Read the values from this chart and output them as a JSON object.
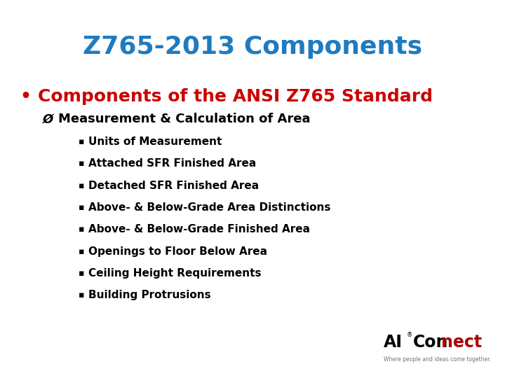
{
  "title": "Z765-2013 Components",
  "title_color": "#1F7BBF",
  "bullet1_bullet": "•",
  "bullet1": "Components of the ANSI Z765 Standard",
  "bullet1_color": "#CC0000",
  "sub_bullet_arrow": "Ø",
  "sub_bullet": "Measurement & Calculation of Area",
  "sub_bullet_color": "#000000",
  "items": [
    "Units of Measurement",
    "Attached SFR Finished Area",
    "Detached SFR Finished Area",
    "Above- & Below-Grade Area Distinctions",
    "Above- & Below-Grade Finished Area",
    "Openings to Floor Below Area",
    "Ceiling Height Requirements",
    "Building Protrusions"
  ],
  "item_color": "#000000",
  "bg_color": "#FFFFFF",
  "logo_ai": "AI",
  "logo_reg": "®",
  "logo_con": "Con",
  "logo_nect": "nect",
  "logo_ai_color": "#000000",
  "logo_con_color": "#000000",
  "logo_nect_color": "#AA0000",
  "logo_tagline": "Where people and ideas come together.",
  "logo_tagline_color": "#777777"
}
